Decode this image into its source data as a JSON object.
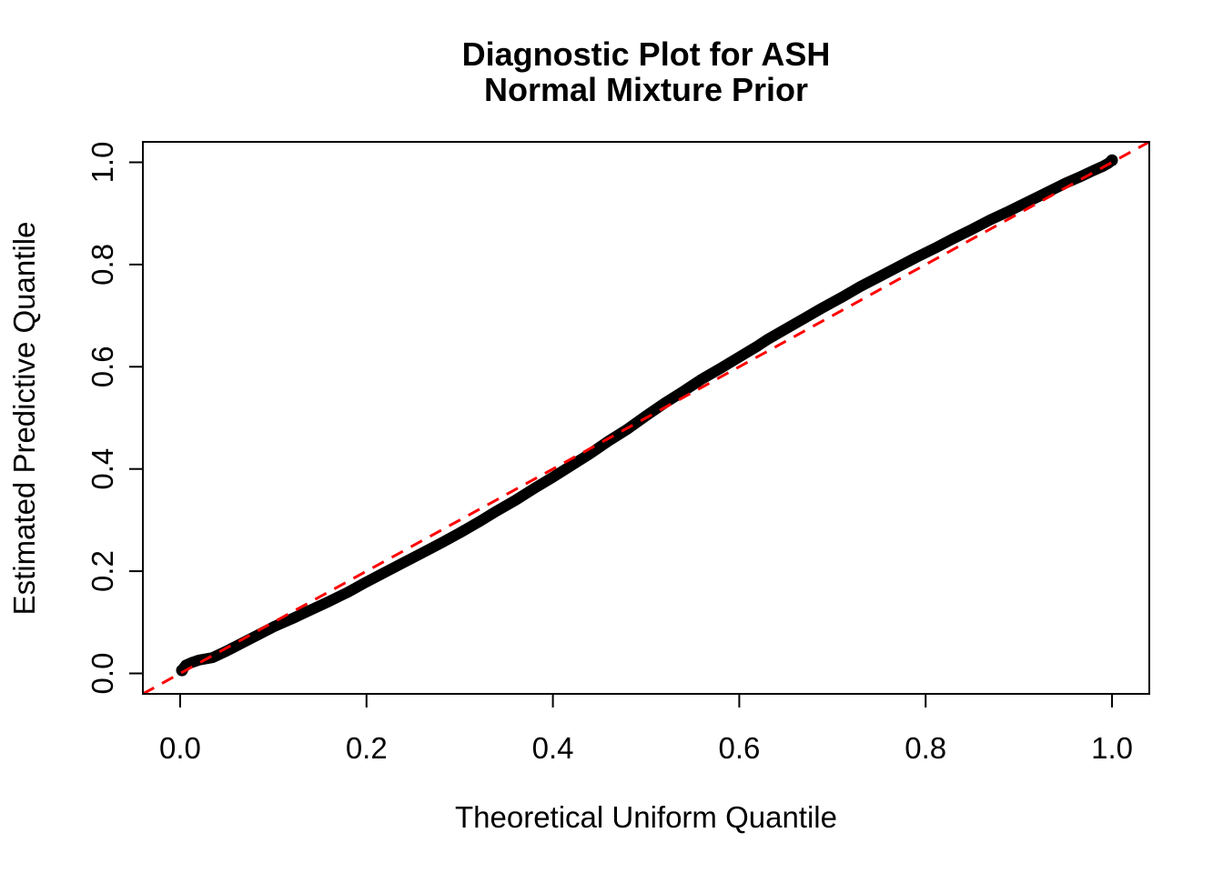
{
  "figure": {
    "title_line1": "Diagnostic Plot for ASH",
    "title_line2": "Normal Mixture Prior"
  },
  "chart_data": {
    "type": "scatter",
    "title": "Diagnostic Plot for ASH — Normal Mixture Prior",
    "xlabel": "Theoretical Uniform Quantile",
    "ylabel": "Estimated Predictive Quantile",
    "xlim": [
      -0.04,
      1.04
    ],
    "ylim": [
      -0.04,
      1.04
    ],
    "grid": false,
    "legend": "none",
    "x_tick_values": [
      0.0,
      0.2,
      0.4,
      0.6,
      0.8,
      1.0
    ],
    "x_tick_labels": [
      "0.0",
      "0.2",
      "0.4",
      "0.6",
      "0.8",
      "1.0"
    ],
    "y_tick_values": [
      0.0,
      0.2,
      0.4,
      0.6,
      0.8,
      1.0
    ],
    "y_tick_labels": [
      "0.0",
      "0.2",
      "0.4",
      "0.6",
      "0.8",
      "1.0"
    ],
    "colors": {
      "points": "#000000",
      "reference_line": "#ff0000",
      "axis": "#000000",
      "background": "#ffffff"
    },
    "reference_line": {
      "equation": "y = x",
      "style": "dashed",
      "color": "#ff0000",
      "from": [
        -0.04,
        -0.04
      ],
      "to": [
        1.04,
        1.04
      ]
    },
    "series": [
      {
        "name": "estimated-predictive-quantiles",
        "marker": "dense-points-thick-band",
        "color": "#000000",
        "points": [
          [
            0.002,
            0.006
          ],
          [
            0.006,
            0.016
          ],
          [
            0.012,
            0.021
          ],
          [
            0.02,
            0.026
          ],
          [
            0.035,
            0.031
          ],
          [
            0.05,
            0.044
          ],
          [
            0.065,
            0.058
          ],
          [
            0.083,
            0.075
          ],
          [
            0.1,
            0.091
          ],
          [
            0.12,
            0.107
          ],
          [
            0.14,
            0.124
          ],
          [
            0.16,
            0.141
          ],
          [
            0.18,
            0.159
          ],
          [
            0.2,
            0.179
          ],
          [
            0.22,
            0.198
          ],
          [
            0.24,
            0.217
          ],
          [
            0.26,
            0.236
          ],
          [
            0.28,
            0.255
          ],
          [
            0.3,
            0.275
          ],
          [
            0.32,
            0.296
          ],
          [
            0.34,
            0.318
          ],
          [
            0.36,
            0.339
          ],
          [
            0.38,
            0.362
          ],
          [
            0.4,
            0.384
          ],
          [
            0.42,
            0.407
          ],
          [
            0.44,
            0.43
          ],
          [
            0.46,
            0.455
          ],
          [
            0.48,
            0.478
          ],
          [
            0.5,
            0.504
          ],
          [
            0.52,
            0.529
          ],
          [
            0.54,
            0.552
          ],
          [
            0.56,
            0.576
          ],
          [
            0.58,
            0.597
          ],
          [
            0.6,
            0.619
          ],
          [
            0.62,
            0.641
          ],
          [
            0.63,
            0.653
          ],
          [
            0.65,
            0.674
          ],
          [
            0.67,
            0.695
          ],
          [
            0.69,
            0.716
          ],
          [
            0.71,
            0.736
          ],
          [
            0.73,
            0.757
          ],
          [
            0.75,
            0.776
          ],
          [
            0.77,
            0.795
          ],
          [
            0.79,
            0.814
          ],
          [
            0.81,
            0.832
          ],
          [
            0.83,
            0.851
          ],
          [
            0.85,
            0.869
          ],
          [
            0.87,
            0.888
          ],
          [
            0.89,
            0.905
          ],
          [
            0.91,
            0.923
          ],
          [
            0.93,
            0.941
          ],
          [
            0.95,
            0.959
          ],
          [
            0.965,
            0.971
          ],
          [
            0.98,
            0.984
          ],
          [
            0.99,
            0.992
          ],
          [
            0.996,
            0.998
          ],
          [
            1.0,
            1.004
          ]
        ]
      }
    ]
  }
}
